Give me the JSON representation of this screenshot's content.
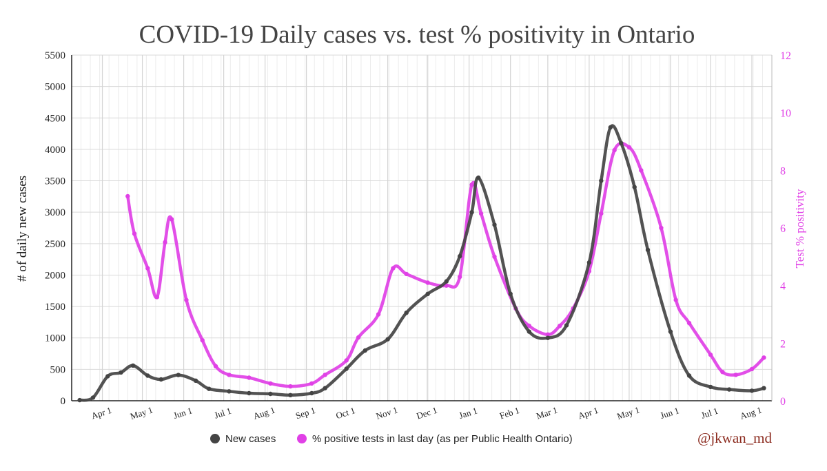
{
  "chart_data": {
    "type": "line",
    "title": "COVID-19 Daily cases vs. test % positivity in Ontario",
    "ylabel": "# of daily new cases",
    "y2label": "Test % positivity",
    "ylim": [
      0,
      5500
    ],
    "y2lim": [
      0,
      12
    ],
    "yticks": [
      "0",
      "500",
      "1000",
      "1500",
      "2000",
      "2500",
      "3000",
      "3500",
      "4000",
      "4500",
      "5000",
      "5500"
    ],
    "y2ticks": [
      "0",
      "2",
      "4",
      "6",
      "8",
      "10",
      "12"
    ],
    "xticks": [
      "Apr 1",
      "May 1",
      "Jun 1",
      "Jul 1",
      "Aug 1",
      "Sep 1",
      "Oct 1",
      "Nov 1",
      "Dec 1",
      "Jan 1",
      "Feb 1",
      "Mar 1",
      "Apr 1",
      "May 1",
      "Jun 1",
      "Jul 1",
      "Aug 1"
    ],
    "grid": true,
    "legend_position": "bottom",
    "colors": {
      "cases": "#444444",
      "positivity": "#e040e6",
      "grid": "#d9d9d9"
    },
    "series": [
      {
        "name": "New cases",
        "axis": "left",
        "x": [
          "2020-03-15",
          "2020-03-25",
          "2020-04-05",
          "2020-04-15",
          "2020-04-24",
          "2020-05-05",
          "2020-05-15",
          "2020-05-28",
          "2020-06-10",
          "2020-06-20",
          "2020-07-05",
          "2020-07-20",
          "2020-08-05",
          "2020-08-20",
          "2020-09-05",
          "2020-09-15",
          "2020-10-01",
          "2020-10-15",
          "2020-11-01",
          "2020-11-15",
          "2020-12-01",
          "2020-12-15",
          "2020-12-25",
          "2021-01-03",
          "2021-01-08",
          "2021-01-20",
          "2021-02-01",
          "2021-02-15",
          "2021-03-01",
          "2021-03-15",
          "2021-04-01",
          "2021-04-10",
          "2021-04-17",
          "2021-04-25",
          "2021-05-05",
          "2021-05-15",
          "2021-06-01",
          "2021-06-15",
          "2021-07-01",
          "2021-07-15",
          "2021-08-01",
          "2021-08-10"
        ],
        "y": [
          10,
          50,
          390,
          450,
          560,
          400,
          340,
          410,
          320,
          190,
          150,
          120,
          110,
          90,
          120,
          200,
          510,
          800,
          980,
          1400,
          1700,
          1900,
          2300,
          3000,
          3550,
          2800,
          1700,
          1100,
          1000,
          1200,
          2200,
          3500,
          4350,
          4100,
          3400,
          2400,
          1100,
          400,
          220,
          180,
          160,
          200
        ]
      },
      {
        "name": "% positive tests in last day (as per Public Health Ontario)",
        "axis": "right",
        "x": [
          "2020-04-20",
          "2020-04-25",
          "2020-05-05",
          "2020-05-12",
          "2020-05-18",
          "2020-05-23",
          "2020-06-03",
          "2020-06-15",
          "2020-06-25",
          "2020-07-05",
          "2020-07-20",
          "2020-08-05",
          "2020-08-20",
          "2020-09-05",
          "2020-09-15",
          "2020-10-01",
          "2020-10-10",
          "2020-10-25",
          "2020-11-05",
          "2020-11-15",
          "2020-12-01",
          "2020-12-15",
          "2020-12-25",
          "2021-01-03",
          "2021-01-10",
          "2021-01-20",
          "2021-02-05",
          "2021-02-15",
          "2021-03-01",
          "2021-03-10",
          "2021-03-20",
          "2021-04-01",
          "2021-04-10",
          "2021-04-20",
          "2021-05-01",
          "2021-05-10",
          "2021-05-25",
          "2021-06-05",
          "2021-06-15",
          "2021-07-01",
          "2021-07-10",
          "2021-07-20",
          "2021-08-01",
          "2021-08-10"
        ],
        "y": [
          7.1,
          5.8,
          4.6,
          3.6,
          5.5,
          6.3,
          3.5,
          2.1,
          1.2,
          0.9,
          0.8,
          0.6,
          0.5,
          0.6,
          0.9,
          1.4,
          2.2,
          3.0,
          4.6,
          4.4,
          4.1,
          4.0,
          4.3,
          7.5,
          6.5,
          5.0,
          3.2,
          2.6,
          2.3,
          2.6,
          3.2,
          4.5,
          6.5,
          8.7,
          8.8,
          8.0,
          6.0,
          3.5,
          2.7,
          1.6,
          1.0,
          0.9,
          1.1,
          1.5
        ]
      }
    ]
  },
  "legend": {
    "cases_label": "New cases",
    "positivity_label": "% positive tests in last day (as per Public Health Ontario)"
  },
  "credit": "@jkwan_md"
}
